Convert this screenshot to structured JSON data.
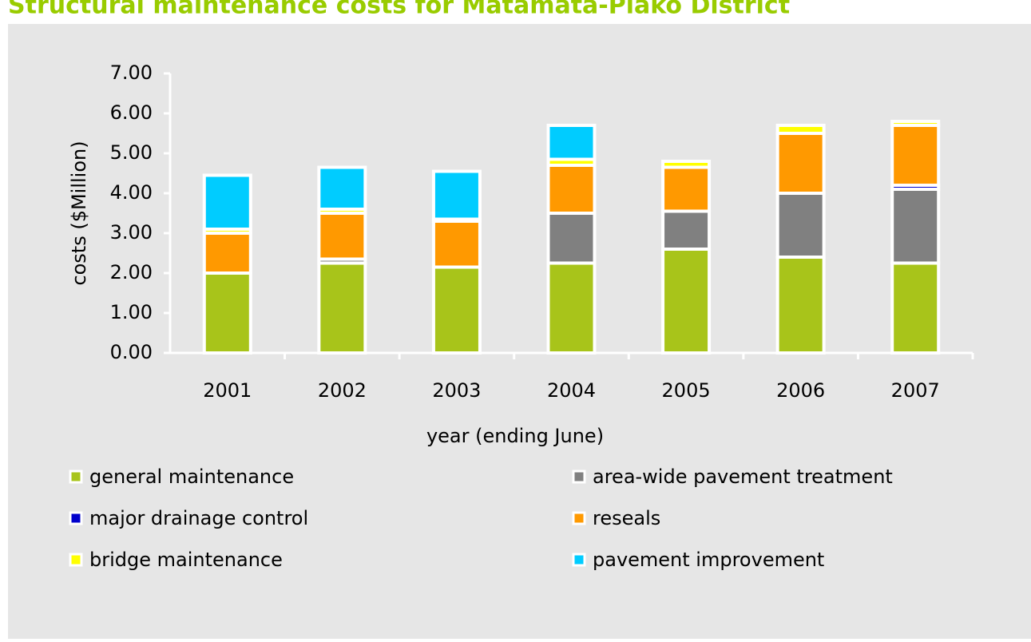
{
  "chart_data": {
    "type": "stacked-bar",
    "title": "Structural maintenance costs for Matamata-Piako District",
    "x_label": "year (ending June)",
    "y_label": "costs ($Million)",
    "categories": [
      "2001",
      "2002",
      "2003",
      "2004",
      "2005",
      "2006",
      "2007"
    ],
    "series": [
      {
        "name": "general maintenance",
        "color": "#a8c41a",
        "values": [
          2.0,
          2.25,
          2.15,
          2.25,
          2.6,
          2.4,
          2.25
        ]
      },
      {
        "name": "area-wide pavement treatment",
        "color": "#808080",
        "values": [
          0,
          0.1,
          0,
          1.25,
          0.95,
          1.6,
          1.85
        ]
      },
      {
        "name": "major drainage control",
        "color": "#0000cc",
        "values": [
          0,
          0,
          0,
          0,
          0,
          0,
          0.1
        ]
      },
      {
        "name": "reseals",
        "color": "#ff9900",
        "values": [
          1.0,
          1.15,
          1.15,
          1.2,
          1.1,
          1.5,
          1.5
        ]
      },
      {
        "name": "bridge maintenance",
        "color": "#ffff00",
        "values": [
          0.1,
          0.1,
          0.05,
          0.15,
          0.15,
          0.2,
          0.1
        ]
      },
      {
        "name": "pavement improvement",
        "color": "#00ccff",
        "values": [
          1.35,
          1.05,
          1.2,
          0.85,
          0,
          0,
          0
        ]
      }
    ],
    "ylim": [
      0,
      7
    ],
    "yticks": [
      {
        "value": 0,
        "label": "0.00"
      },
      {
        "value": 1,
        "label": "1.00"
      },
      {
        "value": 2,
        "label": "2.00"
      },
      {
        "value": 3,
        "label": "3.00"
      },
      {
        "value": 4,
        "label": "4.00"
      },
      {
        "value": 5,
        "label": "5.00"
      },
      {
        "value": 6,
        "label": "6.00"
      },
      {
        "value": 7,
        "label": "7.00"
      }
    ]
  }
}
